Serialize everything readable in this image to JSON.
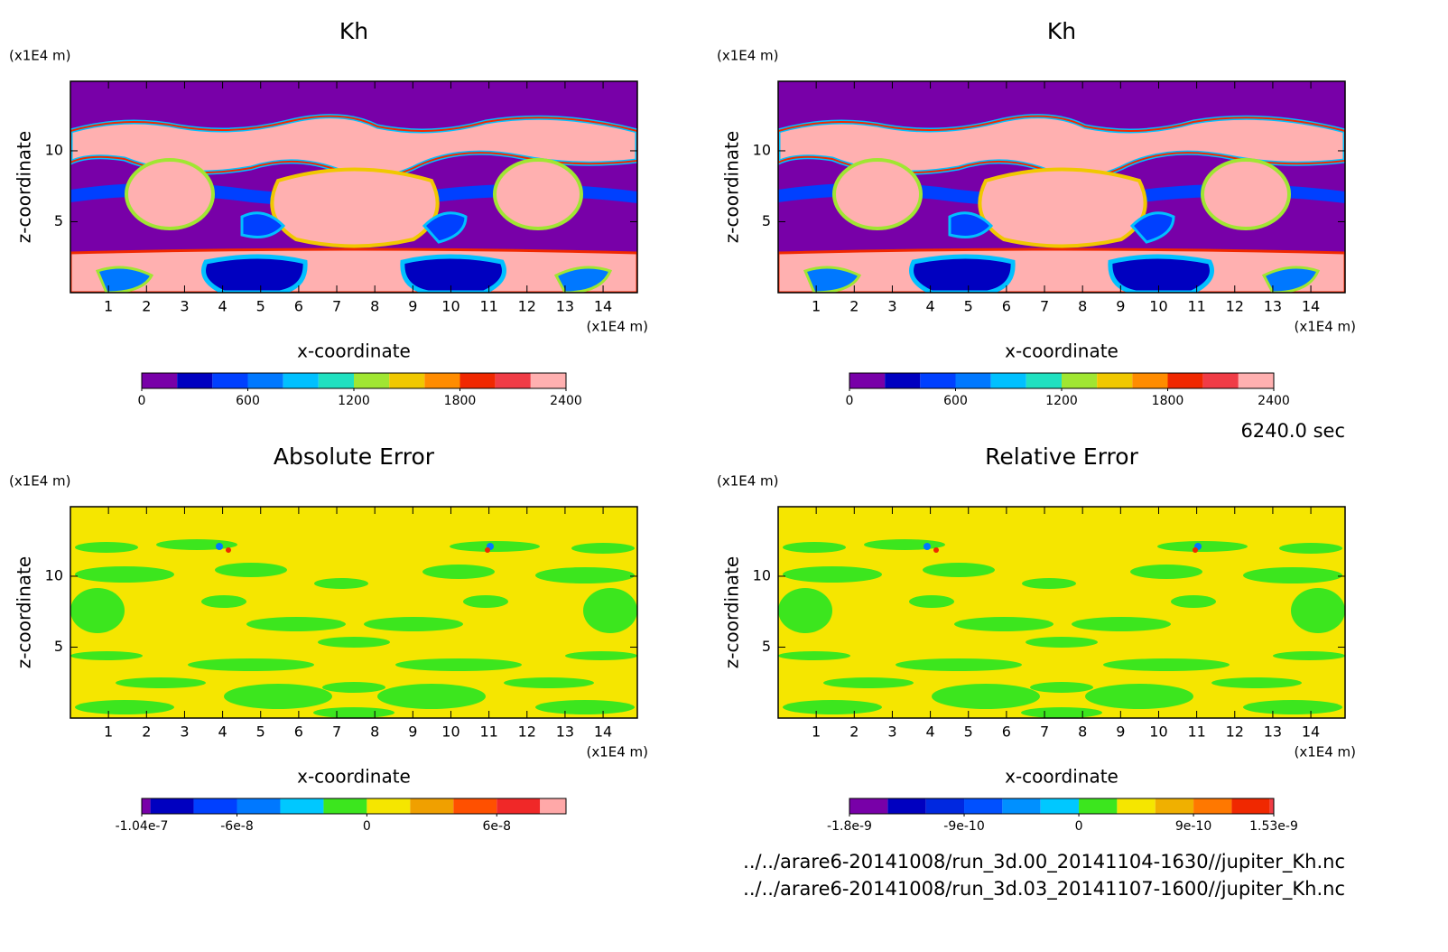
{
  "chart_data": [
    {
      "type": "contour",
      "title": "Kh",
      "x_label": "x-coordinate",
      "y_label": "z-coordinate",
      "x_unit": "(x1E4 m)",
      "y_unit": "(x1E4 m)",
      "xlim": [
        0,
        14.9
      ],
      "ylim": [
        0,
        14.9
      ],
      "xticks": [
        1,
        2,
        3,
        4,
        5,
        6,
        7,
        8,
        9,
        10,
        11,
        12,
        13,
        14
      ],
      "yticks": [
        5,
        10
      ],
      "colorbar": {
        "levels": [
          0,
          200,
          400,
          600,
          800,
          1000,
          1200,
          1400,
          1600,
          1800,
          2000,
          2200,
          2400
        ],
        "colors": [
          "#7800a8",
          "#0000c0",
          "#0040ff",
          "#0078ff",
          "#00c0ff",
          "#20e0c0",
          "#a0e632",
          "#f0c800",
          "#ff8c00",
          "#f02800",
          "#f03c46",
          "#ffb0b0"
        ],
        "ticks": [
          0,
          600,
          1200,
          1800,
          2400
        ]
      }
    },
    {
      "type": "contour",
      "title": "Kh",
      "x_label": "x-coordinate",
      "y_label": "z-coordinate",
      "x_unit": "(x1E4 m)",
      "y_unit": "(x1E4 m)",
      "xlim": [
        0,
        14.9
      ],
      "ylim": [
        0,
        14.9
      ],
      "xticks": [
        1,
        2,
        3,
        4,
        5,
        6,
        7,
        8,
        9,
        10,
        11,
        12,
        13,
        14
      ],
      "yticks": [
        5,
        10
      ],
      "colorbar": {
        "levels": [
          0,
          200,
          400,
          600,
          800,
          1000,
          1200,
          1400,
          1600,
          1800,
          2000,
          2200,
          2400
        ],
        "colors": [
          "#7800a8",
          "#0000c0",
          "#0040ff",
          "#0078ff",
          "#00c0ff",
          "#20e0c0",
          "#a0e632",
          "#f0c800",
          "#ff8c00",
          "#f02800",
          "#f03c46",
          "#ffb0b0"
        ],
        "ticks": [
          0,
          600,
          1200,
          1800,
          2400
        ]
      }
    },
    {
      "type": "contour",
      "title": "Absolute Error",
      "x_label": "x-coordinate",
      "y_label": "z-coordinate",
      "x_unit": "(x1E4 m)",
      "y_unit": "(x1E4 m)",
      "xlim": [
        0,
        14.9
      ],
      "ylim": [
        0,
        14.9
      ],
      "xticks": [
        1,
        2,
        3,
        4,
        5,
        6,
        7,
        8,
        9,
        10,
        11,
        12,
        13,
        14
      ],
      "yticks": [
        5,
        10
      ],
      "colorbar": {
        "levels": [
          -1.04e-07,
          -1e-07,
          -8e-08,
          -6e-08,
          -4e-08,
          -2e-08,
          0,
          2e-08,
          4e-08,
          6e-08,
          8e-08,
          9.2e-08
        ],
        "colors": [
          "#7800a8",
          "#0000c0",
          "#0040ff",
          "#0078ff",
          "#00c8ff",
          "#3ce61e",
          "#f5e600",
          "#f0a000",
          "#ff5000",
          "#f02828",
          "#ffa8a8"
        ],
        "ticks": [
          -1.04e-07,
          -6e-08,
          0,
          6e-08
        ]
      }
    },
    {
      "type": "contour",
      "title": "Relative Error",
      "x_label": "x-coordinate",
      "y_label": "z-coordinate",
      "x_unit": "(x1E4 m)",
      "y_unit": "(x1E4 m)",
      "xlim": [
        0,
        14.9
      ],
      "ylim": [
        0,
        14.9
      ],
      "xticks": [
        1,
        2,
        3,
        4,
        5,
        6,
        7,
        8,
        9,
        10,
        11,
        12,
        13,
        14
      ],
      "yticks": [
        5,
        10
      ],
      "colorbar": {
        "levels": [
          -1.8e-09,
          -1.5e-09,
          -1.2e-09,
          -9e-10,
          -6e-10,
          -3e-10,
          0,
          3e-10,
          6e-10,
          9e-10,
          1.2e-09,
          1.5e-09,
          1.53e-09
        ],
        "colors": [
          "#7800a8",
          "#0000c0",
          "#0028e0",
          "#0050ff",
          "#0090ff",
          "#00c8ff",
          "#3ce61e",
          "#f5e600",
          "#f0b000",
          "#ff7800",
          "#f02800",
          "#f03c46"
        ],
        "ticks": [
          -1.8e-09,
          -9e-10,
          0,
          9e-10,
          1.53e-09
        ]
      }
    }
  ],
  "time_label": "6240.0 sec",
  "files": [
    "../../arare6-20141008/run_3d.00_20141104-1630//jupiter_Kh.nc",
    "../../arare6-20141008/run_3d.03_20141107-1600//jupiter_Kh.nc"
  ]
}
